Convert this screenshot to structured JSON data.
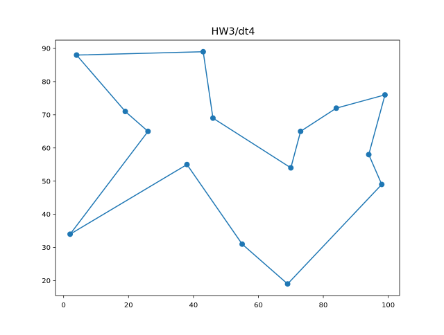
{
  "chart_data": {
    "type": "line",
    "title": "HW3/dt4",
    "xlabel": "",
    "ylabel": "",
    "xlim": [
      -2.5,
      103.5
    ],
    "ylim": [
      15.5,
      92.5
    ],
    "xticks": [
      0,
      20,
      40,
      60,
      80,
      100
    ],
    "yticks": [
      20,
      30,
      40,
      50,
      60,
      70,
      80,
      90
    ],
    "grid": false,
    "legend": "none",
    "series": [
      {
        "color": "#1f77b4",
        "marker": "circle",
        "points": [
          [
            4,
            88
          ],
          [
            43,
            89
          ],
          [
            46,
            69
          ],
          [
            70,
            54
          ],
          [
            73,
            65
          ],
          [
            84,
            72
          ],
          [
            99,
            76
          ],
          [
            94,
            58
          ],
          [
            98,
            49
          ],
          [
            69,
            19
          ],
          [
            55,
            31
          ],
          [
            38,
            55
          ],
          [
            2,
            34
          ],
          [
            26,
            65
          ],
          [
            19,
            71
          ],
          [
            4,
            88
          ]
        ]
      }
    ]
  }
}
